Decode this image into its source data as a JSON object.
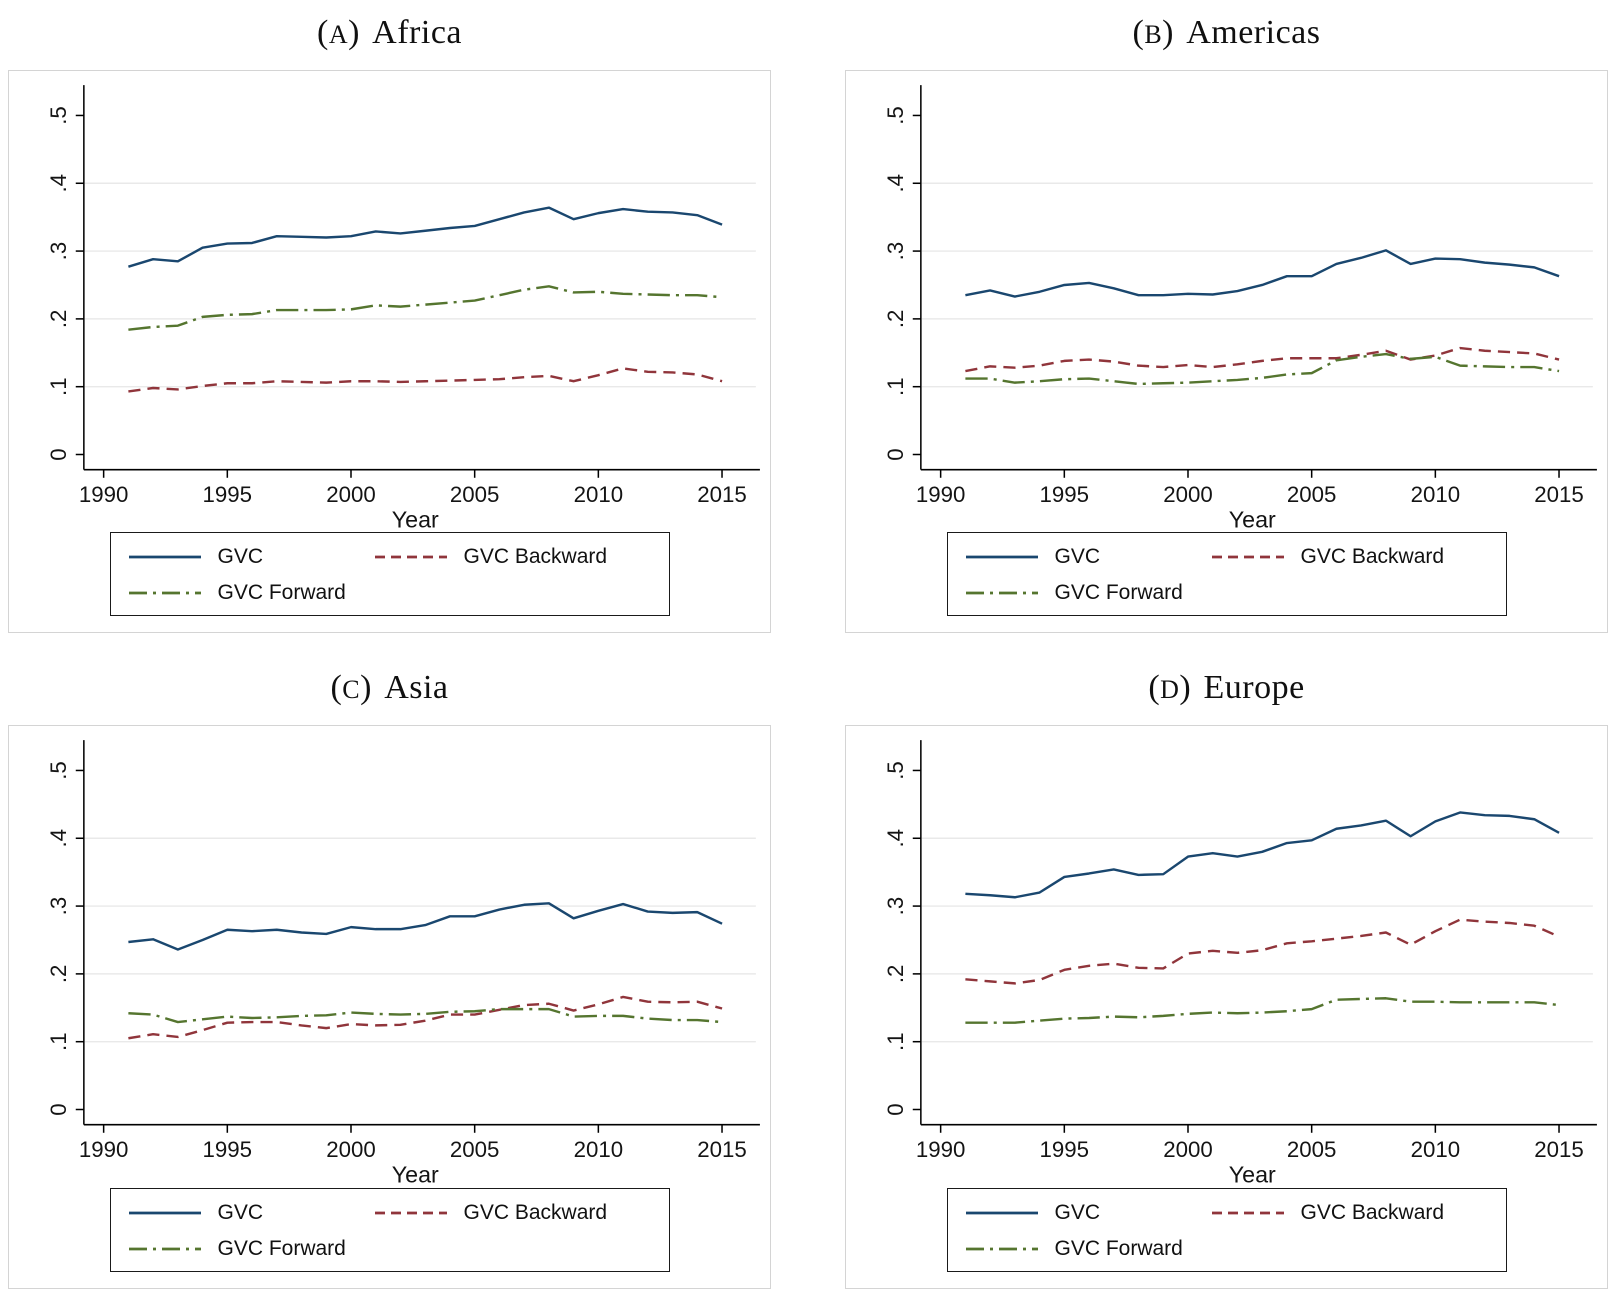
{
  "figure": {
    "panels": [
      {
        "id": "africa",
        "title": {
          "open": "(",
          "letter": "A",
          "close": ")",
          "name": "Africa"
        }
      },
      {
        "id": "americas",
        "title": {
          "open": "(",
          "letter": "B",
          "close": ")",
          "name": "Americas"
        }
      },
      {
        "id": "asia",
        "title": {
          "open": "(",
          "letter": "C",
          "close": ")",
          "name": "Asia"
        }
      },
      {
        "id": "europe",
        "title": {
          "open": "(",
          "letter": "D",
          "close": ")",
          "name": "Europe"
        }
      }
    ],
    "colors": {
      "gvc": "#1a476f",
      "gvc_backward": "#90353b",
      "gvc_forward": "#55752f",
      "gridline": "#e9e9e9",
      "axis": "#000000",
      "panel_border": "#d4d4d4"
    }
  },
  "chart_data": [
    {
      "type": "line",
      "title": "(A) Africa",
      "xlabel": "Year",
      "ylim": [
        0,
        0.5
      ],
      "xlim": [
        1990,
        2015
      ],
      "grid": "horizontal-light",
      "legend_position": "bottom",
      "xticks": [
        1990,
        1995,
        2000,
        2005,
        2010,
        2015
      ],
      "yticks": [
        {
          "label": "0",
          "v": 0
        },
        {
          "label": ".1",
          "v": 0.1
        },
        {
          "label": ".2",
          "v": 0.2
        },
        {
          "label": ".3",
          "v": 0.3
        },
        {
          "label": ".4",
          "v": 0.4
        },
        {
          "label": ".5",
          "v": 0.5
        }
      ],
      "x": [
        1991,
        1992,
        1993,
        1994,
        1995,
        1996,
        1997,
        1998,
        1999,
        2000,
        2001,
        2002,
        2003,
        2004,
        2005,
        2006,
        2007,
        2008,
        2009,
        2010,
        2011,
        2012,
        2013,
        2014,
        2015
      ],
      "series": [
        {
          "name": "GVC",
          "color": "#1a476f",
          "style": "solid",
          "values": [
            0.277,
            0.288,
            0.285,
            0.305,
            0.311,
            0.312,
            0.322,
            0.321,
            0.32,
            0.322,
            0.329,
            0.326,
            0.33,
            0.334,
            0.337,
            0.347,
            0.357,
            0.364,
            0.347,
            0.356,
            0.362,
            0.358,
            0.357,
            0.353,
            0.339
          ]
        },
        {
          "name": "GVC Backward",
          "color": "#90353b",
          "style": "dash",
          "values": [
            0.093,
            0.098,
            0.096,
            0.101,
            0.105,
            0.105,
            0.108,
            0.107,
            0.106,
            0.108,
            0.108,
            0.107,
            0.108,
            0.109,
            0.11,
            0.111,
            0.114,
            0.116,
            0.108,
            0.117,
            0.127,
            0.122,
            0.121,
            0.118,
            0.108
          ]
        },
        {
          "name": "GVC Forward",
          "color": "#55752f",
          "style": "dash_dot",
          "values": [
            0.184,
            0.188,
            0.19,
            0.203,
            0.206,
            0.207,
            0.213,
            0.213,
            0.213,
            0.214,
            0.22,
            0.218,
            0.221,
            0.224,
            0.227,
            0.235,
            0.243,
            0.248,
            0.239,
            0.24,
            0.237,
            0.236,
            0.235,
            0.235,
            0.232
          ]
        }
      ]
    },
    {
      "type": "line",
      "title": "(B) Americas",
      "xlabel": "Year",
      "ylim": [
        0,
        0.5
      ],
      "xlim": [
        1990,
        2015
      ],
      "grid": "horizontal-light",
      "legend_position": "bottom",
      "xticks": [
        1990,
        1995,
        2000,
        2005,
        2010,
        2015
      ],
      "yticks": [
        {
          "label": "0",
          "v": 0
        },
        {
          "label": ".1",
          "v": 0.1
        },
        {
          "label": ".2",
          "v": 0.2
        },
        {
          "label": ".3",
          "v": 0.3
        },
        {
          "label": ".4",
          "v": 0.4
        },
        {
          "label": ".5",
          "v": 0.5
        }
      ],
      "x": [
        1991,
        1992,
        1993,
        1994,
        1995,
        1996,
        1997,
        1998,
        1999,
        2000,
        2001,
        2002,
        2003,
        2004,
        2005,
        2006,
        2007,
        2008,
        2009,
        2010,
        2011,
        2012,
        2013,
        2014,
        2015
      ],
      "series": [
        {
          "name": "GVC",
          "color": "#1a476f",
          "style": "solid",
          "values": [
            0.235,
            0.242,
            0.233,
            0.24,
            0.25,
            0.253,
            0.245,
            0.235,
            0.235,
            0.237,
            0.236,
            0.241,
            0.25,
            0.263,
            0.263,
            0.281,
            0.29,
            0.301,
            0.281,
            0.289,
            0.288,
            0.283,
            0.28,
            0.276,
            0.263
          ]
        },
        {
          "name": "GVC Backward",
          "color": "#90353b",
          "style": "dash",
          "values": [
            0.123,
            0.13,
            0.128,
            0.131,
            0.138,
            0.14,
            0.137,
            0.131,
            0.129,
            0.132,
            0.129,
            0.133,
            0.138,
            0.142,
            0.142,
            0.142,
            0.147,
            0.153,
            0.14,
            0.146,
            0.157,
            0.153,
            0.151,
            0.149,
            0.14
          ]
        },
        {
          "name": "GVC Forward",
          "color": "#55752f",
          "style": "dash_dot",
          "values": [
            0.112,
            0.112,
            0.106,
            0.108,
            0.111,
            0.112,
            0.108,
            0.104,
            0.105,
            0.106,
            0.108,
            0.11,
            0.113,
            0.118,
            0.12,
            0.139,
            0.144,
            0.148,
            0.141,
            0.144,
            0.131,
            0.13,
            0.129,
            0.129,
            0.123
          ]
        }
      ]
    },
    {
      "type": "line",
      "title": "(C) Asia",
      "xlabel": "Year",
      "ylim": [
        0,
        0.5
      ],
      "xlim": [
        1990,
        2015
      ],
      "grid": "horizontal-light",
      "legend_position": "bottom",
      "xticks": [
        1990,
        1995,
        2000,
        2005,
        2010,
        2015
      ],
      "yticks": [
        {
          "label": "0",
          "v": 0
        },
        {
          "label": ".1",
          "v": 0.1
        },
        {
          "label": ".2",
          "v": 0.2
        },
        {
          "label": ".3",
          "v": 0.3
        },
        {
          "label": ".4",
          "v": 0.4
        },
        {
          "label": ".5",
          "v": 0.5
        }
      ],
      "x": [
        1991,
        1992,
        1993,
        1994,
        1995,
        1996,
        1997,
        1998,
        1999,
        2000,
        2001,
        2002,
        2003,
        2004,
        2005,
        2006,
        2007,
        2008,
        2009,
        2010,
        2011,
        2012,
        2013,
        2014,
        2015
      ],
      "series": [
        {
          "name": "GVC",
          "color": "#1a476f",
          "style": "solid",
          "values": [
            0.247,
            0.251,
            0.236,
            0.25,
            0.265,
            0.263,
            0.265,
            0.261,
            0.259,
            0.269,
            0.266,
            0.266,
            0.272,
            0.285,
            0.285,
            0.295,
            0.302,
            0.304,
            0.282,
            0.293,
            0.303,
            0.292,
            0.29,
            0.291,
            0.274
          ]
        },
        {
          "name": "GVC Backward",
          "color": "#90353b",
          "style": "dash",
          "values": [
            0.105,
            0.111,
            0.107,
            0.117,
            0.128,
            0.129,
            0.129,
            0.124,
            0.12,
            0.126,
            0.124,
            0.125,
            0.131,
            0.14,
            0.14,
            0.147,
            0.154,
            0.156,
            0.146,
            0.155,
            0.166,
            0.159,
            0.158,
            0.159,
            0.149
          ]
        },
        {
          "name": "GVC Forward",
          "color": "#55752f",
          "style": "dash_dot",
          "values": [
            0.142,
            0.14,
            0.129,
            0.133,
            0.137,
            0.135,
            0.136,
            0.138,
            0.139,
            0.143,
            0.141,
            0.14,
            0.141,
            0.144,
            0.145,
            0.148,
            0.148,
            0.148,
            0.137,
            0.138,
            0.138,
            0.134,
            0.132,
            0.132,
            0.129
          ]
        }
      ]
    },
    {
      "type": "line",
      "title": "(D) Europe",
      "xlabel": "Year",
      "ylim": [
        0,
        0.5
      ],
      "xlim": [
        1990,
        2015
      ],
      "grid": "horizontal-light",
      "legend_position": "bottom",
      "xticks": [
        1990,
        1995,
        2000,
        2005,
        2010,
        2015
      ],
      "yticks": [
        {
          "label": "0",
          "v": 0
        },
        {
          "label": ".1",
          "v": 0.1
        },
        {
          "label": ".2",
          "v": 0.2
        },
        {
          "label": ".3",
          "v": 0.3
        },
        {
          "label": ".4",
          "v": 0.4
        },
        {
          "label": ".5",
          "v": 0.5
        }
      ],
      "x": [
        1991,
        1992,
        1993,
        1994,
        1995,
        1996,
        1997,
        1998,
        1999,
        2000,
        2001,
        2002,
        2003,
        2004,
        2005,
        2006,
        2007,
        2008,
        2009,
        2010,
        2011,
        2012,
        2013,
        2014,
        2015
      ],
      "series": [
        {
          "name": "GVC",
          "color": "#1a476f",
          "style": "solid",
          "values": [
            0.318,
            0.316,
            0.313,
            0.32,
            0.343,
            0.348,
            0.354,
            0.346,
            0.347,
            0.373,
            0.378,
            0.373,
            0.38,
            0.393,
            0.397,
            0.414,
            0.419,
            0.426,
            0.403,
            0.425,
            0.438,
            0.434,
            0.433,
            0.428,
            0.408
          ]
        },
        {
          "name": "GVC Backward",
          "color": "#90353b",
          "style": "dash",
          "values": [
            0.192,
            0.189,
            0.186,
            0.191,
            0.206,
            0.212,
            0.215,
            0.209,
            0.208,
            0.23,
            0.234,
            0.231,
            0.235,
            0.245,
            0.248,
            0.252,
            0.256,
            0.261,
            0.243,
            0.263,
            0.28,
            0.277,
            0.275,
            0.271,
            0.255
          ]
        },
        {
          "name": "GVC Forward",
          "color": "#55752f",
          "style": "dash_dot",
          "values": [
            0.128,
            0.128,
            0.128,
            0.131,
            0.134,
            0.135,
            0.137,
            0.136,
            0.138,
            0.141,
            0.143,
            0.142,
            0.143,
            0.145,
            0.148,
            0.162,
            0.163,
            0.164,
            0.159,
            0.159,
            0.158,
            0.158,
            0.158,
            0.158,
            0.154
          ]
        }
      ]
    }
  ]
}
